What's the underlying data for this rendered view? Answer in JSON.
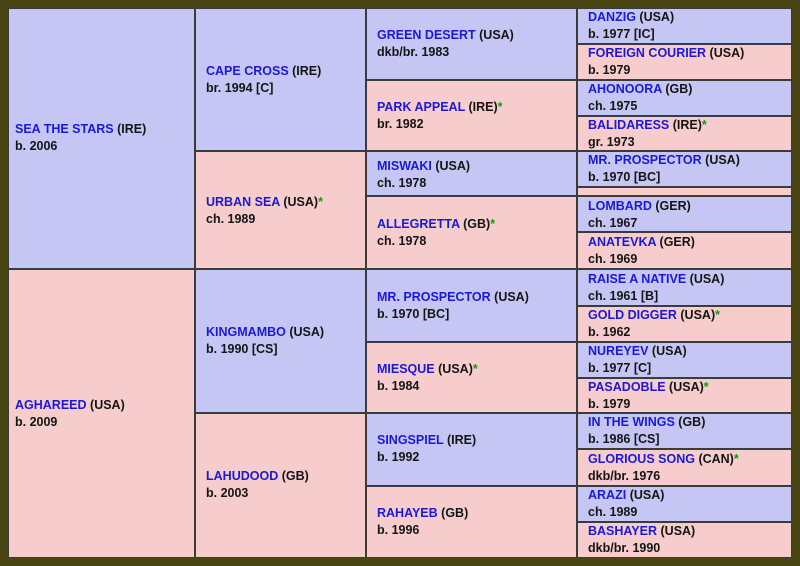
{
  "horses": {
    "h1": {
      "name": "SEA THE STARS",
      "country": "(IRE)",
      "star": "",
      "info": "b. 2006"
    },
    "h2": {
      "name": "AGHAREED",
      "country": "(USA)",
      "star": "",
      "info": "b. 2009"
    },
    "h3": {
      "name": "CAPE CROSS",
      "country": "(IRE)",
      "star": "",
      "info": "br. 1994 [C]"
    },
    "h4": {
      "name": "URBAN SEA",
      "country": "(USA)",
      "star": "*",
      "info": "ch. 1989"
    },
    "h5": {
      "name": "KINGMAMBO",
      "country": "(USA)",
      "star": "",
      "info": "b. 1990 [CS]"
    },
    "h6": {
      "name": "LAHUDOOD",
      "country": "(GB)",
      "star": "",
      "info": "b. 2003"
    },
    "h7": {
      "name": "GREEN DESERT",
      "country": "(USA)",
      "star": "",
      "info": "dkb/br. 1983"
    },
    "h8": {
      "name": "PARK APPEAL",
      "country": "(IRE)",
      "star": "*",
      "info": "br. 1982"
    },
    "h9": {
      "name": "MISWAKI",
      "country": "(USA)",
      "star": "",
      "info": "ch. 1978"
    },
    "h10": {
      "name": "ALLEGRETTA",
      "country": "(GB)",
      "star": "*",
      "info": "ch. 1978"
    },
    "h11": {
      "name": "MR. PROSPECTOR",
      "country": "(USA)",
      "star": "",
      "info": "b. 1970 [BC]"
    },
    "h12": {
      "name": "MIESQUE",
      "country": "(USA)",
      "star": "*",
      "info": "b. 1984"
    },
    "h13": {
      "name": "SINGSPIEL",
      "country": "(IRE)",
      "star": "",
      "info": "b. 1992"
    },
    "h14": {
      "name": "RAHAYEB",
      "country": "(GB)",
      "star": "",
      "info": "b. 1996"
    },
    "h15": {
      "name": "DANZIG",
      "country": "(USA)",
      "star": "",
      "info": "b. 1977 [IC]"
    },
    "h16": {
      "name": "FOREIGN COURIER",
      "country": "(USA)",
      "star": "",
      "info": "b. 1979"
    },
    "h17": {
      "name": "AHONOORA",
      "country": "(GB)",
      "star": "",
      "info": "ch. 1975"
    },
    "h18": {
      "name": "BALIDARESS",
      "country": "(IRE)",
      "star": "*",
      "info": "gr. 1973"
    },
    "h19": {
      "name": "MR. PROSPECTOR",
      "country": "(USA)",
      "star": "",
      "info": "b. 1970 [BC]"
    },
    "h20": {
      "name": "",
      "country": "",
      "star": "",
      "info": ""
    },
    "h21": {
      "name": "LOMBARD",
      "country": "(GER)",
      "star": "",
      "info": "ch. 1967"
    },
    "h22": {
      "name": "ANATEVKA",
      "country": "(GER)",
      "star": "",
      "info": "ch. 1969"
    },
    "h23": {
      "name": "RAISE A NATIVE",
      "country": "(USA)",
      "star": "",
      "info": "ch. 1961 [B]"
    },
    "h24": {
      "name": "GOLD DIGGER",
      "country": "(USA)",
      "star": "*",
      "info": "b. 1962"
    },
    "h25": {
      "name": "NUREYEV",
      "country": "(USA)",
      "star": "",
      "info": "b. 1977 [C]"
    },
    "h26": {
      "name": "PASADOBLE",
      "country": "(USA)",
      "star": "*",
      "info": "b. 1979"
    },
    "h27": {
      "name": "IN THE WINGS",
      "country": "(GB)",
      "star": "",
      "info": "b. 1986 [CS]"
    },
    "h28": {
      "name": "GLORIOUS SONG",
      "country": "(CAN)",
      "star": "*",
      "info": "dkb/br. 1976"
    },
    "h29": {
      "name": "ARAZI",
      "country": "(USA)",
      "star": "",
      "info": "ch. 1989"
    },
    "h30": {
      "name": "BASHAYER",
      "country": "(USA)",
      "star": "",
      "info": "dkb/br. 1990"
    }
  },
  "colors": {
    "sire_cell": "#c6c6f5",
    "dam_cell": "#f7cccc",
    "name_text": "#1a1ad6",
    "star_text": "#129a12",
    "grid": "#3b3b3b",
    "frame": "#4a4514"
  }
}
